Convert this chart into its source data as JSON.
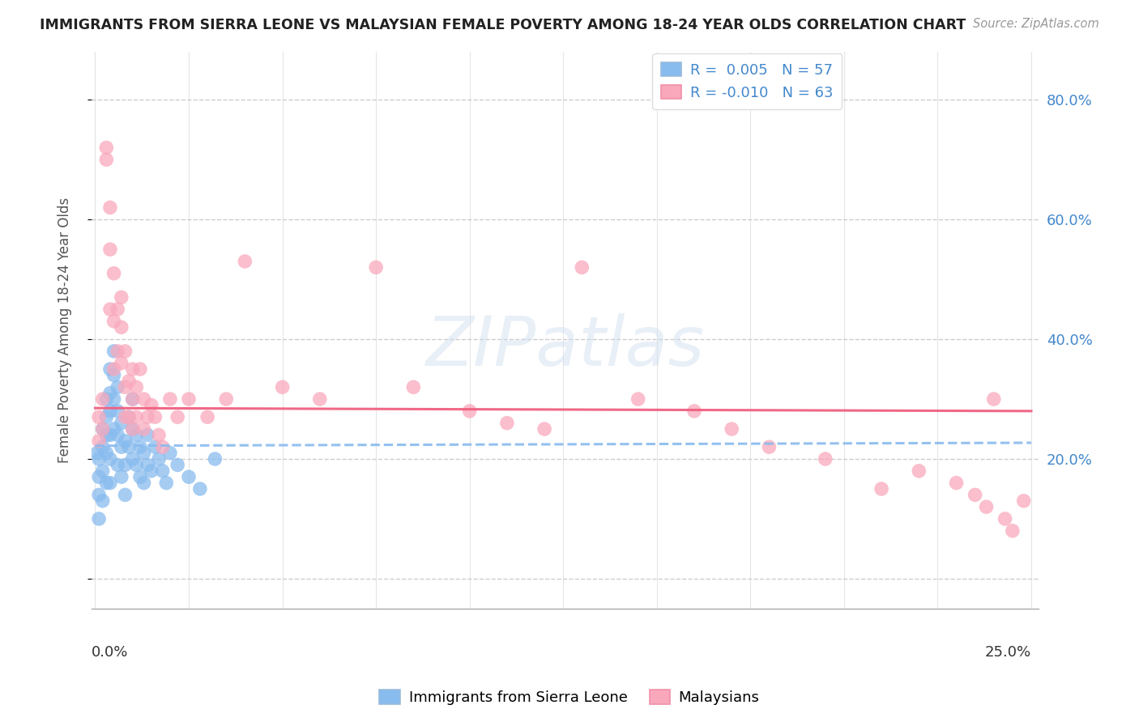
{
  "title": "IMMIGRANTS FROM SIERRA LEONE VS MALAYSIAN FEMALE POVERTY AMONG 18-24 YEAR OLDS CORRELATION CHART",
  "source": "Source: ZipAtlas.com",
  "ylabel": "Female Poverty Among 18-24 Year Olds",
  "legend_label1": "Immigrants from Sierra Leone",
  "legend_label2": "Malaysians",
  "legend_r1": "R =  0.005",
  "legend_n1": "N = 57",
  "legend_r2": "R = -0.010",
  "legend_n2": "N = 63",
  "series1_color": "#88bbee",
  "series2_color": "#f9a8bc",
  "trend1_color": "#88bbee",
  "trend2_color": "#f06080",
  "trend1_intercept": 0.222,
  "trend1_slope": 0.02,
  "trend2_intercept": 0.285,
  "trend2_slope": -0.02,
  "watermark": "ZIPatlas",
  "background_color": "#ffffff",
  "grid_color": "#cccccc",
  "title_color": "#222222",
  "axis_label_color": "#555555",
  "right_tick_color": "#4488cc",
  "xlim_min": 0.0,
  "xlim_max": 0.25,
  "ylim_min": -0.05,
  "ylim_max": 0.88,
  "ytick_vals": [
    0.0,
    0.2,
    0.4,
    0.6,
    0.8
  ],
  "ytick_labels": [
    "",
    "20.0%",
    "40.0%",
    "60.0%",
    "80.0%"
  ],
  "blue_x": [
    0.0005,
    0.001,
    0.001,
    0.001,
    0.001,
    0.002,
    0.002,
    0.002,
    0.002,
    0.003,
    0.003,
    0.003,
    0.003,
    0.003,
    0.004,
    0.004,
    0.004,
    0.004,
    0.004,
    0.004,
    0.005,
    0.005,
    0.005,
    0.005,
    0.006,
    0.006,
    0.006,
    0.006,
    0.007,
    0.007,
    0.007,
    0.008,
    0.008,
    0.008,
    0.009,
    0.009,
    0.01,
    0.01,
    0.01,
    0.011,
    0.011,
    0.012,
    0.012,
    0.013,
    0.013,
    0.014,
    0.014,
    0.015,
    0.016,
    0.017,
    0.018,
    0.019,
    0.02,
    0.022,
    0.025,
    0.028,
    0.032
  ],
  "blue_y": [
    0.21,
    0.2,
    0.17,
    0.14,
    0.1,
    0.25,
    0.22,
    0.18,
    0.13,
    0.3,
    0.27,
    0.24,
    0.21,
    0.16,
    0.35,
    0.31,
    0.28,
    0.24,
    0.2,
    0.16,
    0.38,
    0.34,
    0.3,
    0.25,
    0.32,
    0.28,
    0.24,
    0.19,
    0.26,
    0.22,
    0.17,
    0.23,
    0.19,
    0.14,
    0.27,
    0.22,
    0.3,
    0.25,
    0.2,
    0.24,
    0.19,
    0.22,
    0.17,
    0.21,
    0.16,
    0.24,
    0.19,
    0.18,
    0.22,
    0.2,
    0.18,
    0.16,
    0.21,
    0.19,
    0.17,
    0.15,
    0.2
  ],
  "pink_x": [
    0.001,
    0.001,
    0.002,
    0.002,
    0.003,
    0.003,
    0.004,
    0.004,
    0.004,
    0.005,
    0.005,
    0.005,
    0.006,
    0.006,
    0.007,
    0.007,
    0.007,
    0.008,
    0.008,
    0.008,
    0.009,
    0.009,
    0.01,
    0.01,
    0.01,
    0.011,
    0.011,
    0.012,
    0.013,
    0.013,
    0.014,
    0.015,
    0.016,
    0.017,
    0.018,
    0.02,
    0.022,
    0.025,
    0.03,
    0.035,
    0.04,
    0.05,
    0.06,
    0.075,
    0.085,
    0.1,
    0.11,
    0.12,
    0.13,
    0.145,
    0.16,
    0.17,
    0.18,
    0.195,
    0.21,
    0.22,
    0.23,
    0.235,
    0.238,
    0.24,
    0.243,
    0.245,
    0.248
  ],
  "pink_y": [
    0.27,
    0.23,
    0.3,
    0.25,
    0.7,
    0.72,
    0.62,
    0.55,
    0.45,
    0.51,
    0.43,
    0.35,
    0.45,
    0.38,
    0.47,
    0.42,
    0.36,
    0.38,
    0.32,
    0.27,
    0.33,
    0.27,
    0.35,
    0.3,
    0.25,
    0.32,
    0.27,
    0.35,
    0.3,
    0.25,
    0.27,
    0.29,
    0.27,
    0.24,
    0.22,
    0.3,
    0.27,
    0.3,
    0.27,
    0.3,
    0.53,
    0.32,
    0.3,
    0.52,
    0.32,
    0.28,
    0.26,
    0.25,
    0.52,
    0.3,
    0.28,
    0.25,
    0.22,
    0.2,
    0.15,
    0.18,
    0.16,
    0.14,
    0.12,
    0.3,
    0.1,
    0.08,
    0.13
  ]
}
